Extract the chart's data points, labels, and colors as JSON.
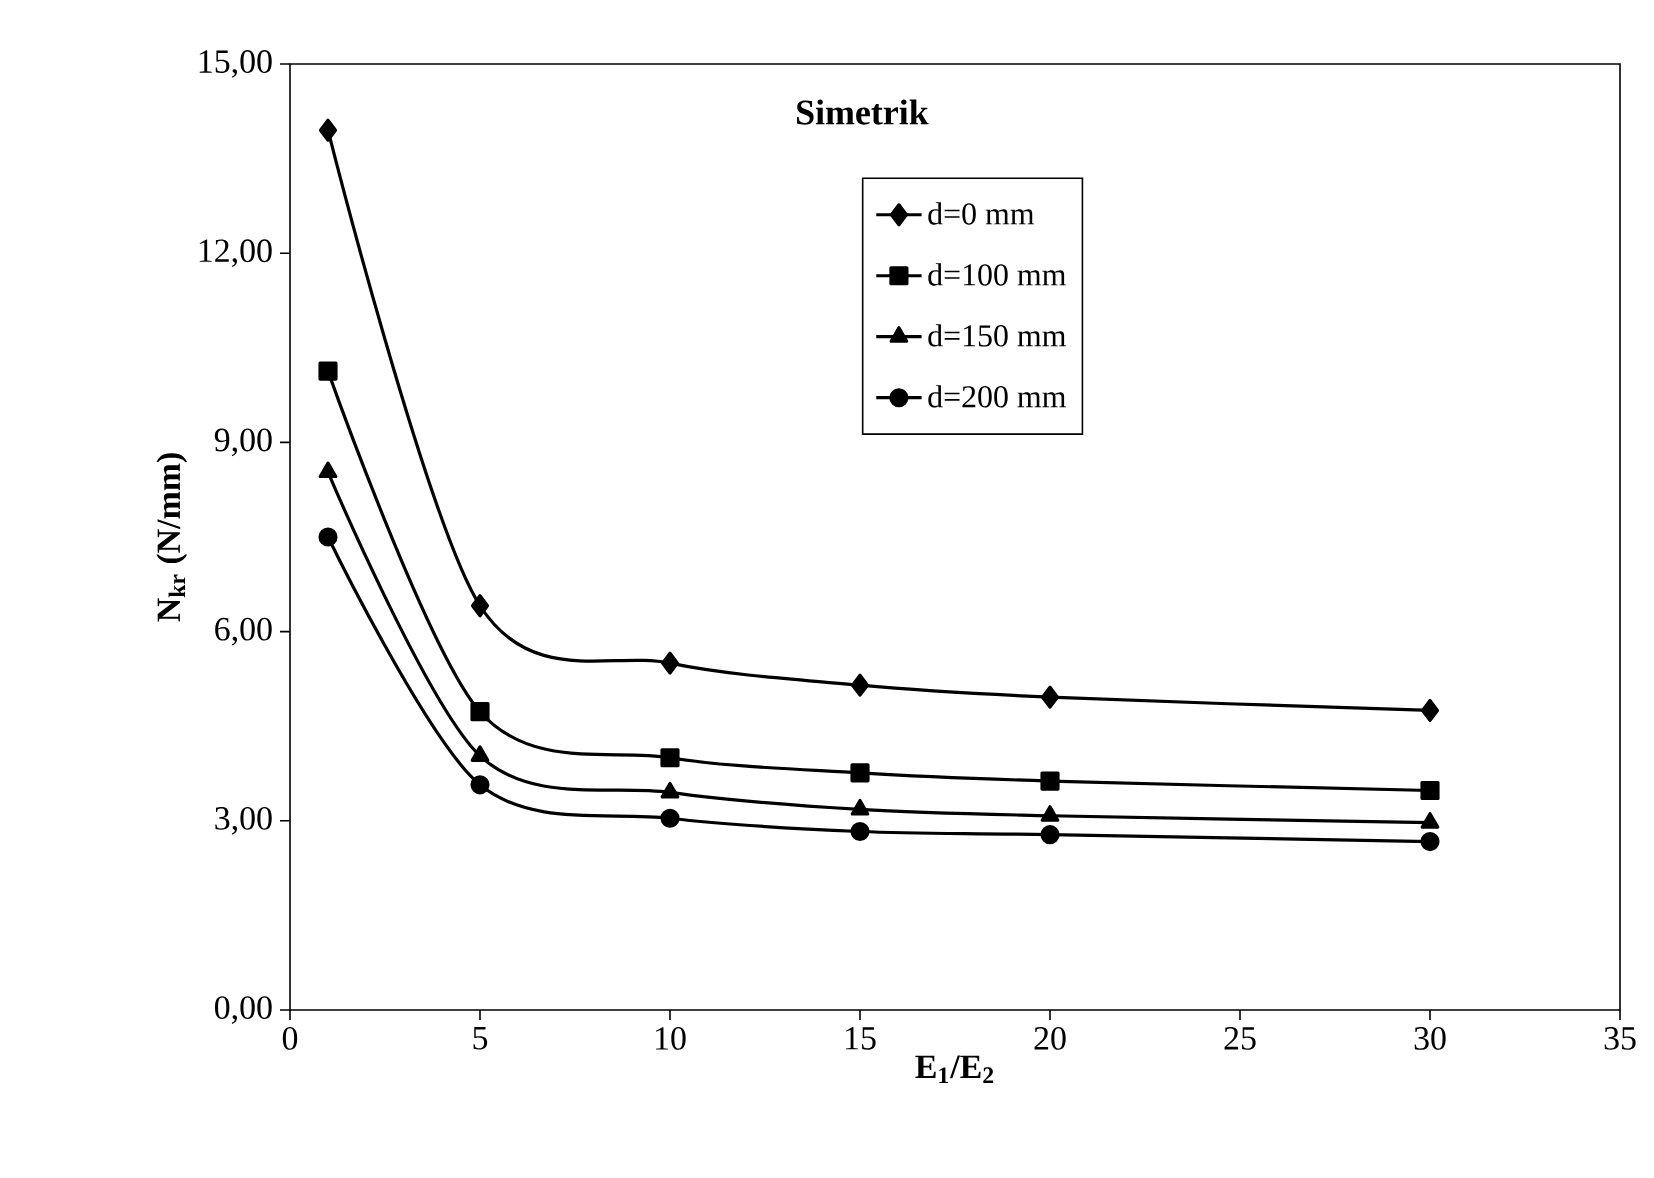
{
  "chart_data": {
    "type": "line",
    "title": "Simetrik",
    "xlabel": "**E$_{1}$/E$_{2}$**",
    "ylabel": "**N$_{kr}$ (N/mm)**",
    "x": [
      1,
      5,
      10,
      15,
      20,
      30
    ],
    "series": [
      {
        "name": "d=0 mm",
        "color": "#000000",
        "marker": "diamond",
        "values": [
          13.95,
          6.41,
          5.5,
          5.15,
          4.96,
          4.75
        ]
      },
      {
        "name": "d=100 mm",
        "color": "#000000",
        "marker": "square",
        "values": [
          10.13,
          4.73,
          4.0,
          3.76,
          3.63,
          3.48
        ]
      },
      {
        "name": "d=150 mm",
        "color": "#000000",
        "marker": "triangle",
        "values": [
          8.53,
          4.03,
          3.45,
          3.18,
          3.08,
          2.97
        ]
      },
      {
        "name": "d=200 mm",
        "color": "#000000",
        "marker": "circle",
        "values": [
          7.5,
          3.57,
          3.04,
          2.83,
          2.78,
          2.67
        ]
      }
    ],
    "xlim": [
      0,
      35
    ],
    "xticks": [
      0,
      5,
      10,
      15,
      20,
      25,
      30,
      35
    ],
    "ylim": [
      0,
      15
    ],
    "yticks": [
      {
        "value": 0,
        "label": "0,00"
      },
      {
        "value": 3,
        "label": "3,00"
      },
      {
        "value": 6,
        "label": "6,00"
      },
      {
        "value": 9,
        "label": "9,00"
      },
      {
        "value": 12,
        "label": "12,00"
      },
      {
        "value": 15,
        "label": "15,00"
      }
    ],
    "legend": "top",
    "grid": false,
    "line_style": "solid"
  }
}
